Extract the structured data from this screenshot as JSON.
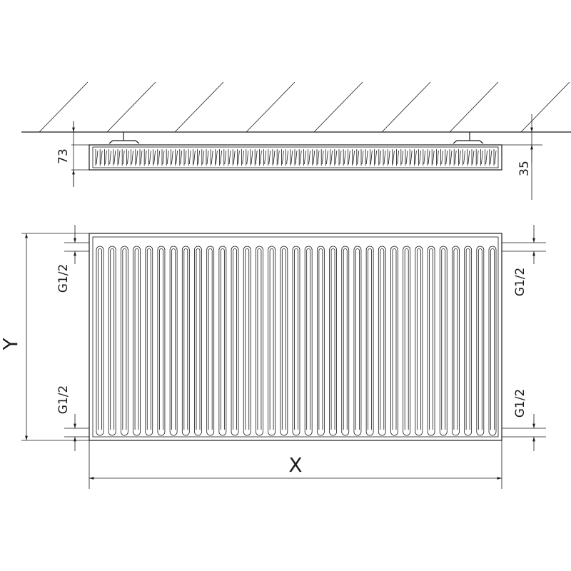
{
  "labels": {
    "depth_total": "73",
    "wall_offset": "35",
    "height": "Y",
    "width": "X",
    "conn_left_top": "G1/2",
    "conn_left_bottom": "G1/2",
    "conn_right_top": "G1/2",
    "conn_right_bottom": "G1/2"
  },
  "fin_count": 33,
  "line_color": "#1a1a1a"
}
